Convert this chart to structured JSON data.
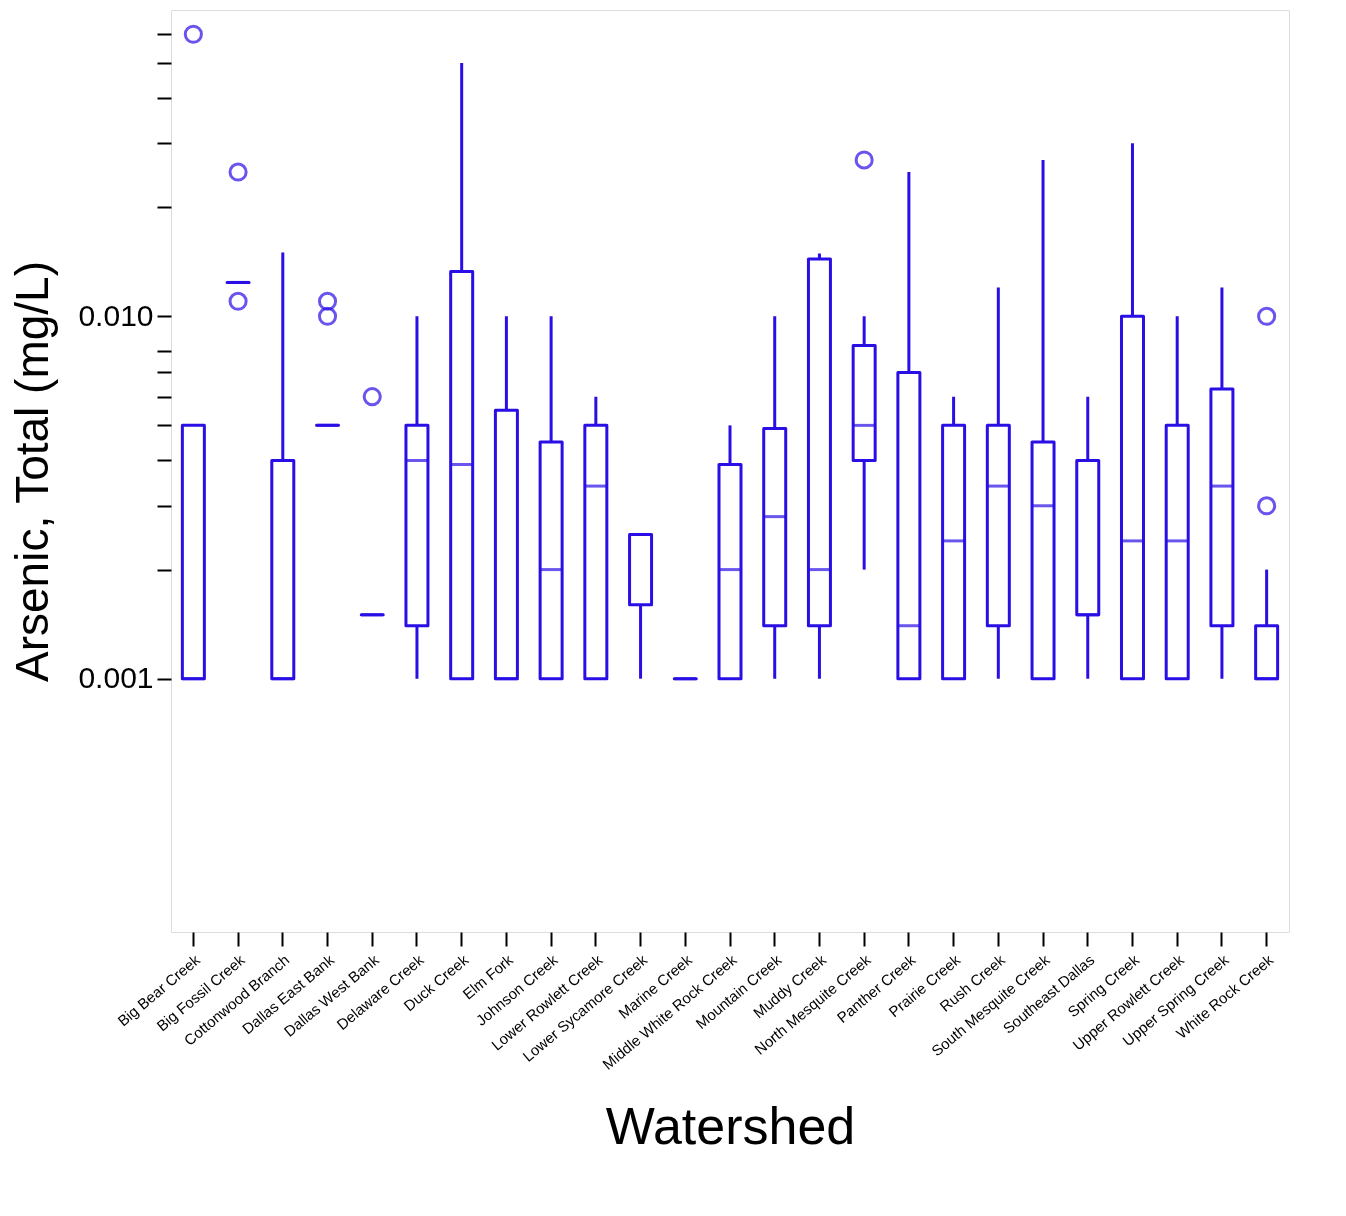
{
  "chart_data": {
    "type": "box",
    "xlabel": "Watershed",
    "ylabel": "Arsenic, Total (mg/L)",
    "log": true,
    "grid": false,
    "categories": [
      "Big Bear Creek",
      "Big Fossil Creek",
      "Cottonwood Branch",
      "Dallas East Bank",
      "Dallas West Bank",
      "Delaware Creek",
      "Duck Creek",
      "Elm Fork",
      "Johnson Creek",
      "Lower Rowlett Creek",
      "Lower Sycamore Creek",
      "Marine Creek",
      "Middle White Rock Creek",
      "Mountain Creek",
      "Muddy Creek",
      "North Mesquite Creek",
      "Panther Creek",
      "Prairie Creek",
      "Rush Creek",
      "South Mesquite Creek",
      "Southeast Dallas",
      "Spring Creek",
      "Upper Rowlett Creek",
      "Upper Spring Creek",
      "White Rock Creek"
    ],
    "ylim": [
      0.0002,
      0.07
    ],
    "yticks": [
      {
        "value": 0.001,
        "label": "0.001"
      },
      {
        "value": 0.002,
        "label": null
      },
      {
        "value": 0.003,
        "label": null
      },
      {
        "value": 0.004,
        "label": null
      },
      {
        "value": 0.005,
        "label": null
      },
      {
        "value": 0.006,
        "label": null
      },
      {
        "value": 0.007,
        "label": null
      },
      {
        "value": 0.008,
        "label": null
      },
      {
        "value": 0.01,
        "label": "0.010"
      },
      {
        "value": 0.02,
        "label": null
      },
      {
        "value": 0.03,
        "label": null
      },
      {
        "value": 0.04,
        "label": null
      },
      {
        "value": 0.05,
        "label": null
      },
      {
        "value": 0.06,
        "label": null
      }
    ],
    "series": [
      {
        "color": "#2a0ee6",
        "boxes": [
          {
            "low": 0.001,
            "q1": 0.001,
            "median": 0.001,
            "q3": 0.005,
            "high": 0.005,
            "outliers": [
              0.06
            ]
          },
          {
            "low": 0.0124,
            "q1": 0.0124,
            "median": 0.0124,
            "q3": 0.0124,
            "high": 0.0124,
            "outliers": [
              0.011,
              0.025
            ]
          },
          {
            "low": 0.001,
            "q1": 0.001,
            "median": 0.001,
            "q3": 0.004,
            "high": 0.015
          },
          {
            "low": 0.005,
            "q1": 0.005,
            "median": 0.005,
            "q3": 0.005,
            "high": 0.005,
            "outliers": [
              0.011,
              0.01
            ]
          },
          {
            "low": 0.0015,
            "q1": 0.0015,
            "median": 0.0015,
            "q3": 0.0015,
            "high": 0.0015,
            "outliers": [
              0.006
            ]
          },
          {
            "low": 0.001,
            "q1": 0.0014,
            "median": 0.004,
            "q3": 0.005,
            "high": 0.01
          },
          {
            "low": 0.001,
            "q1": 0.001,
            "median": 0.0039,
            "q3": 0.0133,
            "high": 0.05
          },
          {
            "low": 0.001,
            "q1": 0.001,
            "median": 0.001,
            "q3": 0.0055,
            "high": 0.01
          },
          {
            "low": 0.001,
            "q1": 0.001,
            "median": 0.002,
            "q3": 0.0045,
            "high": 0.01
          },
          {
            "low": 0.001,
            "q1": 0.001,
            "median": 0.0034,
            "q3": 0.005,
            "high": 0.006
          },
          {
            "low": 0.001,
            "q1": 0.0016,
            "median": 0.0025,
            "q3": 0.0025,
            "high": 0.0025
          },
          {
            "low": 0.001,
            "q1": 0.001,
            "median": 0.001,
            "q3": 0.001,
            "high": 0.001
          },
          {
            "low": 0.001,
            "q1": 0.001,
            "median": 0.002,
            "q3": 0.0039,
            "high": 0.005
          },
          {
            "low": 0.001,
            "q1": 0.0014,
            "median": 0.0028,
            "q3": 0.0049,
            "high": 0.01
          },
          {
            "low": 0.001,
            "q1": 0.0014,
            "median": 0.002,
            "q3": 0.0144,
            "high": 0.0149
          },
          {
            "low": 0.002,
            "q1": 0.004,
            "median": 0.005,
            "q3": 0.0083,
            "high": 0.01,
            "outliers": [
              0.027
            ]
          },
          {
            "low": 0.001,
            "q1": 0.001,
            "median": 0.0014,
            "q3": 0.007,
            "high": 0.025
          },
          {
            "low": 0.001,
            "q1": 0.001,
            "median": 0.0024,
            "q3": 0.005,
            "high": 0.006
          },
          {
            "low": 0.001,
            "q1": 0.0014,
            "median": 0.0034,
            "q3": 0.005,
            "high": 0.012
          },
          {
            "low": 0.001,
            "q1": 0.001,
            "median": 0.003,
            "q3": 0.0045,
            "high": 0.027
          },
          {
            "low": 0.001,
            "q1": 0.0015,
            "median": 0.0015,
            "q3": 0.004,
            "high": 0.006
          },
          {
            "low": 0.001,
            "q1": 0.001,
            "median": 0.0024,
            "q3": 0.01,
            "high": 0.03
          },
          {
            "low": 0.001,
            "q1": 0.001,
            "median": 0.0024,
            "q3": 0.005,
            "high": 0.01
          },
          {
            "low": 0.001,
            "q1": 0.0014,
            "median": 0.0034,
            "q3": 0.0063,
            "high": 0.012
          },
          {
            "low": 0.001,
            "q1": 0.001,
            "median": 0.001,
            "q3": 0.0014,
            "high": 0.002,
            "outliers": [
              0.01,
              0.003
            ]
          }
        ]
      }
    ]
  }
}
